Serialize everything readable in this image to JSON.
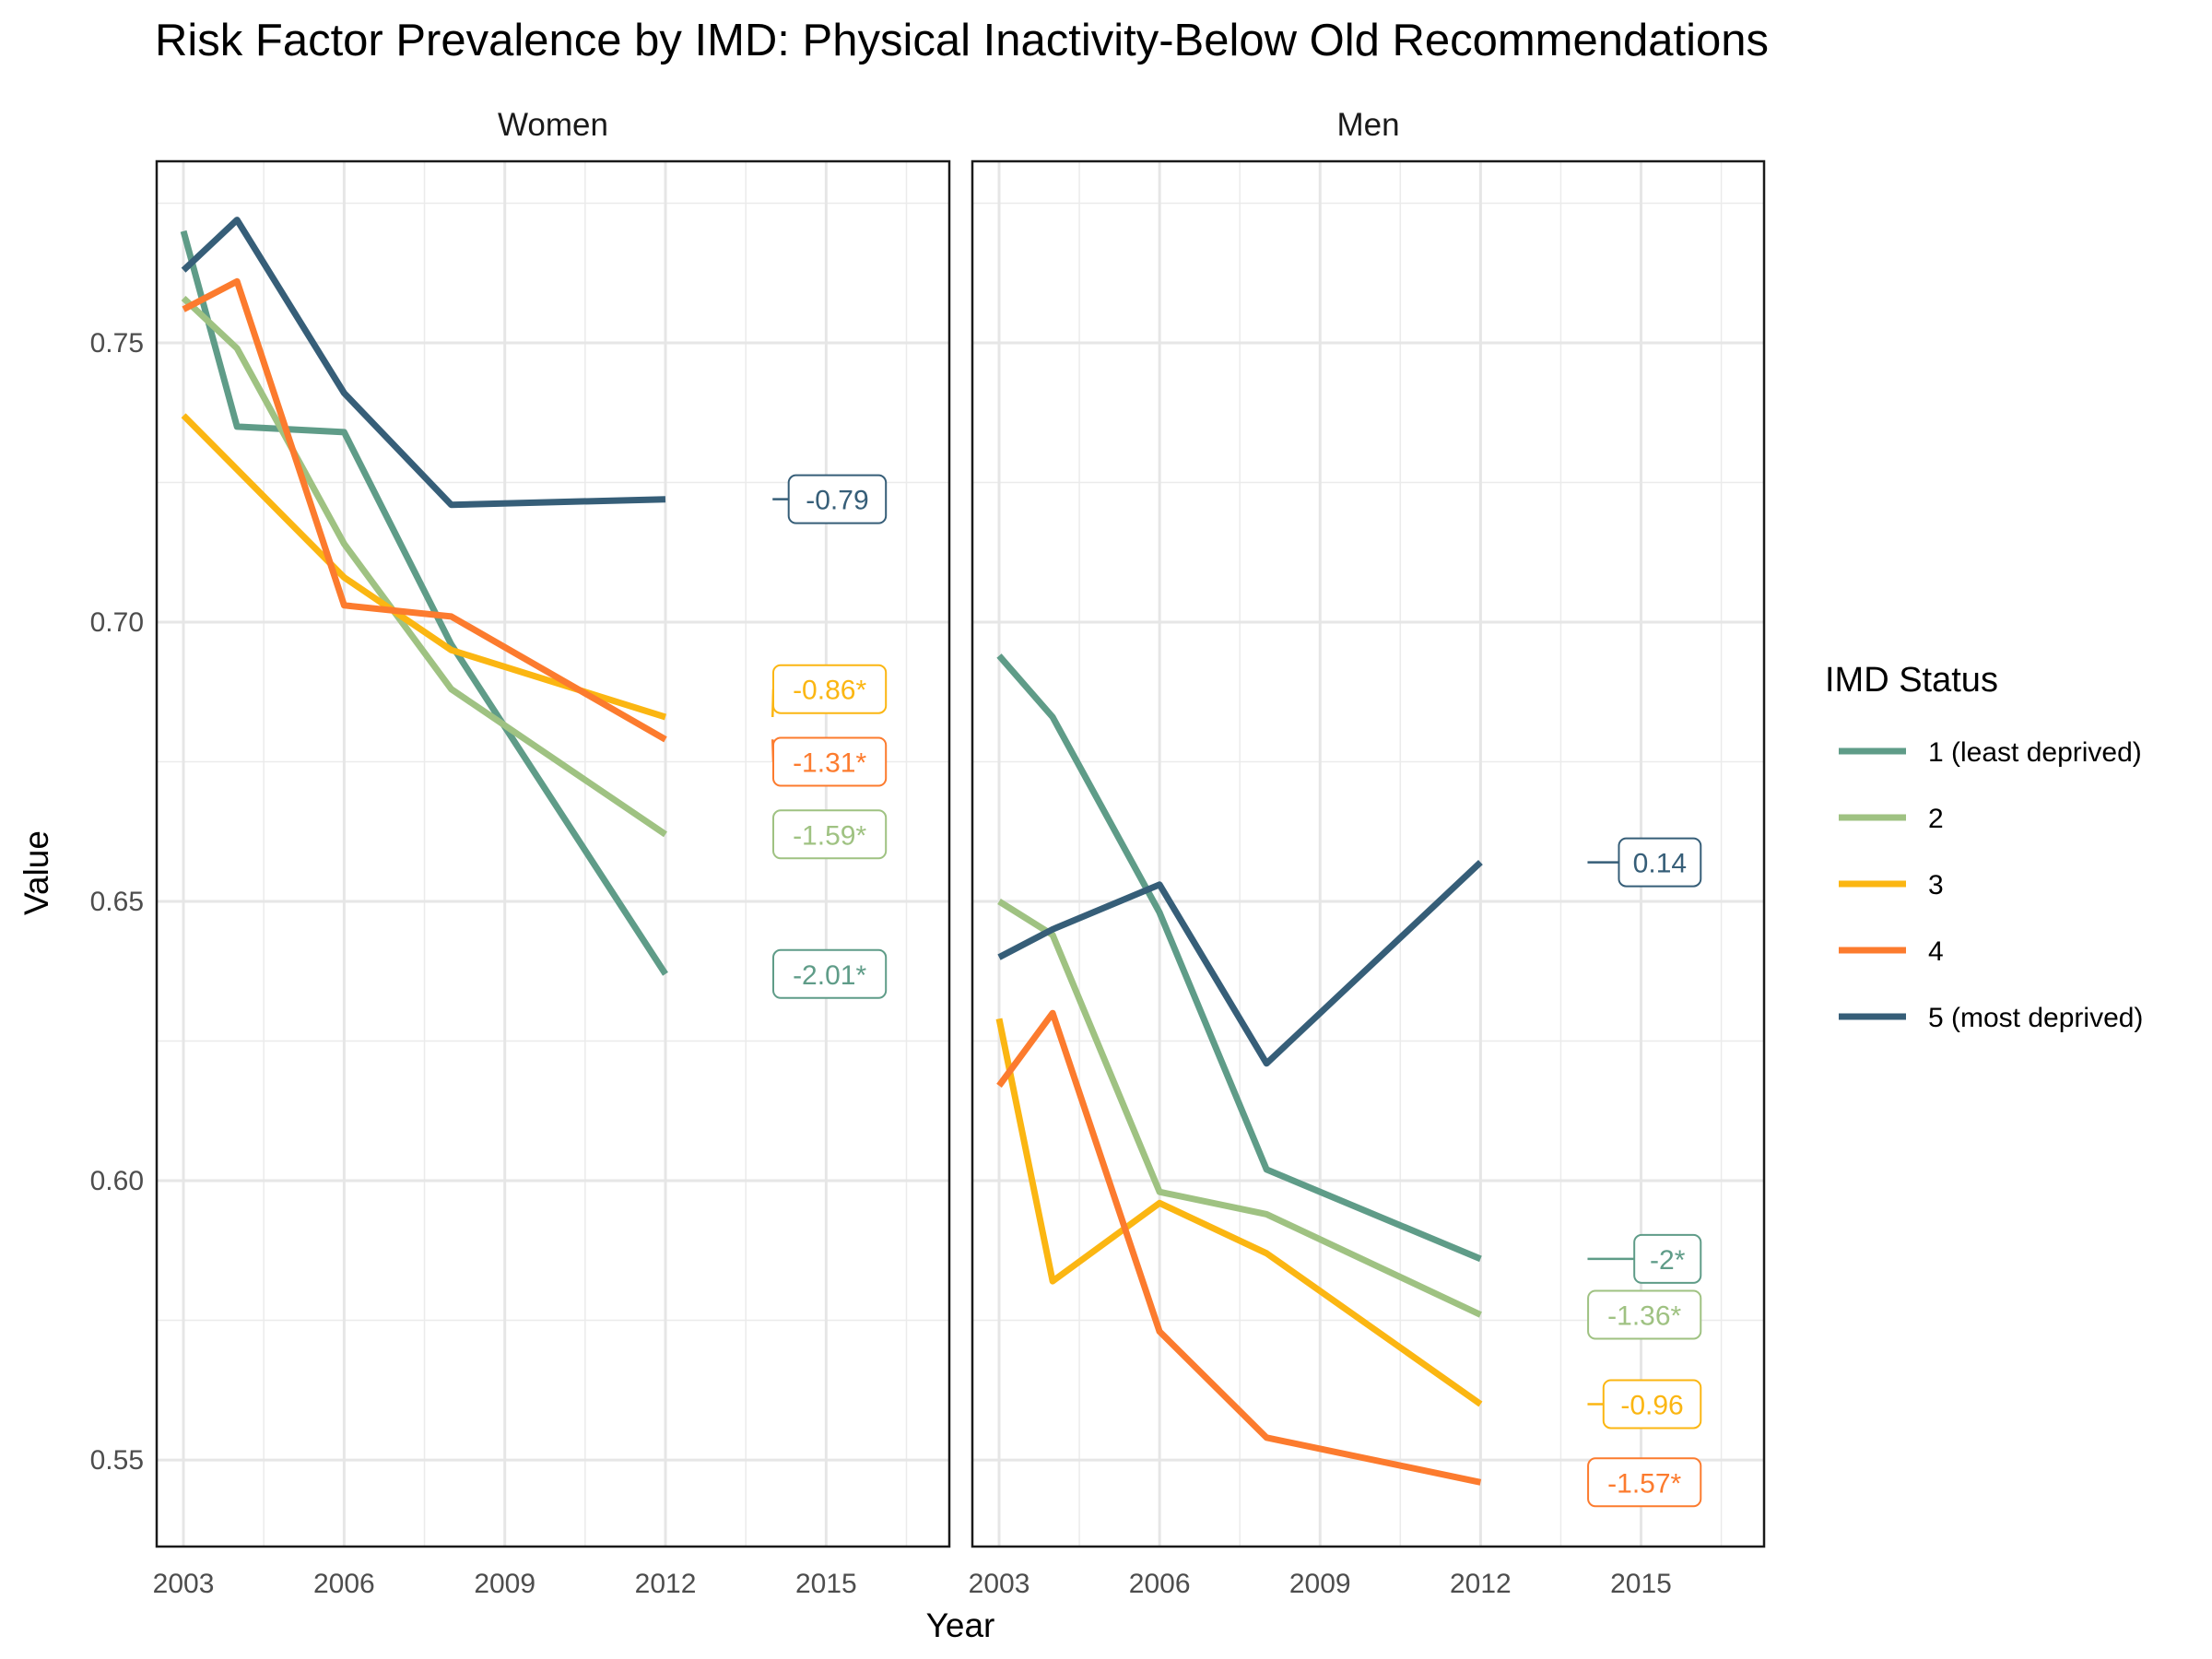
{
  "chart_data": {
    "type": "line",
    "title": "Risk Factor Prevalence by IMD: Physical Inactivity-Below Old Recommendations",
    "xlabel": "Year",
    "ylabel": "Value",
    "xlim": [
      2002.5,
      2017.3
    ],
    "ylim": [
      0.5345,
      0.7825
    ],
    "x_ticks": [
      2003,
      2006,
      2009,
      2012,
      2015
    ],
    "y_ticks": [
      0.55,
      0.6,
      0.65,
      0.7,
      0.75
    ],
    "grid": true,
    "legend": {
      "title": "IMD Status",
      "position": "right",
      "entries": [
        {
          "label": "1 (least deprived)",
          "color": "#5f9c88"
        },
        {
          "label": "2",
          "color": "#9fc282"
        },
        {
          "label": "3",
          "color": "#fbb612"
        },
        {
          "label": "4",
          "color": "#fc7b2e"
        },
        {
          "label": "5 (most deprived)",
          "color": "#365e78"
        }
      ]
    },
    "panels": [
      {
        "name": "Women",
        "series": [
          {
            "imd": 1,
            "x": [
              2003,
              2004,
              2006,
              2008,
              2012
            ],
            "y": [
              0.77,
              0.735,
              0.734,
              0.696,
              0.637
            ],
            "label": "-2.01*",
            "label_y": 0.637
          },
          {
            "imd": 2,
            "x": [
              2003,
              2004,
              2006,
              2008,
              2012
            ],
            "y": [
              0.758,
              0.749,
              0.714,
              0.688,
              0.662
            ],
            "label": "-1.59*",
            "label_y": 0.662
          },
          {
            "imd": 3,
            "x": [
              2003,
              2006,
              2008,
              2012
            ],
            "y": [
              0.737,
              0.708,
              0.695,
              0.683
            ],
            "label": "-0.86*",
            "label_y": 0.688
          },
          {
            "imd": 4,
            "x": [
              2003,
              2004,
              2006,
              2008,
              2012
            ],
            "y": [
              0.756,
              0.761,
              0.703,
              0.701,
              0.679
            ],
            "label": "-1.31*",
            "label_y": 0.675
          },
          {
            "imd": 5,
            "x": [
              2003,
              2004,
              2006,
              2008,
              2012
            ],
            "y": [
              0.763,
              0.772,
              0.741,
              0.721,
              0.722
            ],
            "label": "-0.79",
            "label_y": 0.722
          }
        ]
      },
      {
        "name": "Men",
        "series": [
          {
            "imd": 1,
            "x": [
              2003,
              2004,
              2006,
              2008,
              2012
            ],
            "y": [
              0.694,
              0.683,
              0.648,
              0.602,
              0.586
            ],
            "label": "-2*",
            "label_y": 0.586
          },
          {
            "imd": 2,
            "x": [
              2003,
              2004,
              2006,
              2008,
              2012
            ],
            "y": [
              0.65,
              0.644,
              0.598,
              0.594,
              0.576
            ],
            "label": "-1.36*",
            "label_y": 0.576
          },
          {
            "imd": 3,
            "x": [
              2003,
              2004,
              2006,
              2008,
              2012
            ],
            "y": [
              0.629,
              0.582,
              0.596,
              0.587,
              0.56
            ],
            "label": "-0.96",
            "label_y": 0.56
          },
          {
            "imd": 4,
            "x": [
              2003,
              2004,
              2006,
              2008,
              2012
            ],
            "y": [
              0.617,
              0.63,
              0.573,
              0.554,
              0.546
            ],
            "label": "-1.57*",
            "label_y": 0.546
          },
          {
            "imd": 5,
            "x": [
              2003,
              2004,
              2006,
              2008,
              2012
            ],
            "y": [
              0.64,
              0.645,
              0.653,
              0.621,
              0.657
            ],
            "label": "0.14",
            "label_y": 0.657
          }
        ]
      }
    ]
  }
}
